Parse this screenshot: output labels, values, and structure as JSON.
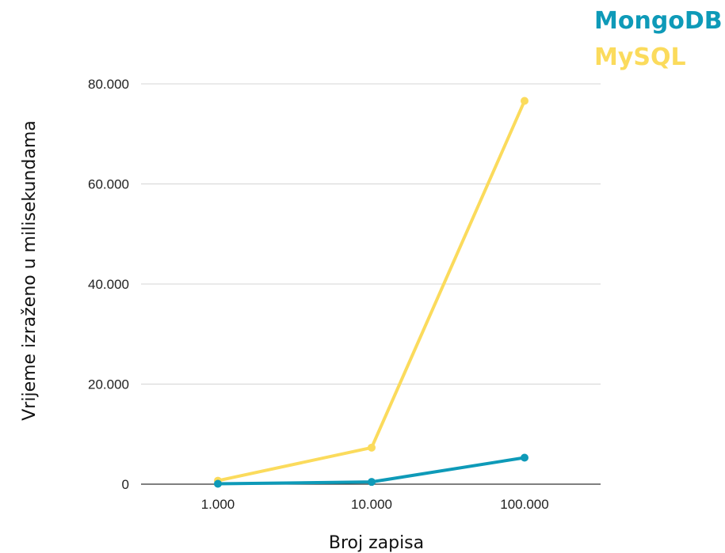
{
  "chart_data": {
    "type": "line",
    "categories": [
      "1.000",
      "10.000",
      "100.000"
    ],
    "series": [
      {
        "name": "MongoDB",
        "color": "#0e9ab8",
        "values": [
          80,
          450,
          5300
        ]
      },
      {
        "name": "MySQL",
        "color": "#fbdb5c",
        "values": [
          700,
          7300,
          76600
        ]
      }
    ],
    "yticks": [
      "0",
      "20.000",
      "40.000",
      "60.000",
      "80.000"
    ],
    "ytick_values": [
      0,
      20000,
      40000,
      60000,
      80000
    ],
    "ylim": [
      0,
      80000
    ],
    "xlabel": "Broj zapisa",
    "ylabel": "Vrijeme izraženo u milisekundama",
    "grid": true,
    "legend_position": "top-right"
  }
}
